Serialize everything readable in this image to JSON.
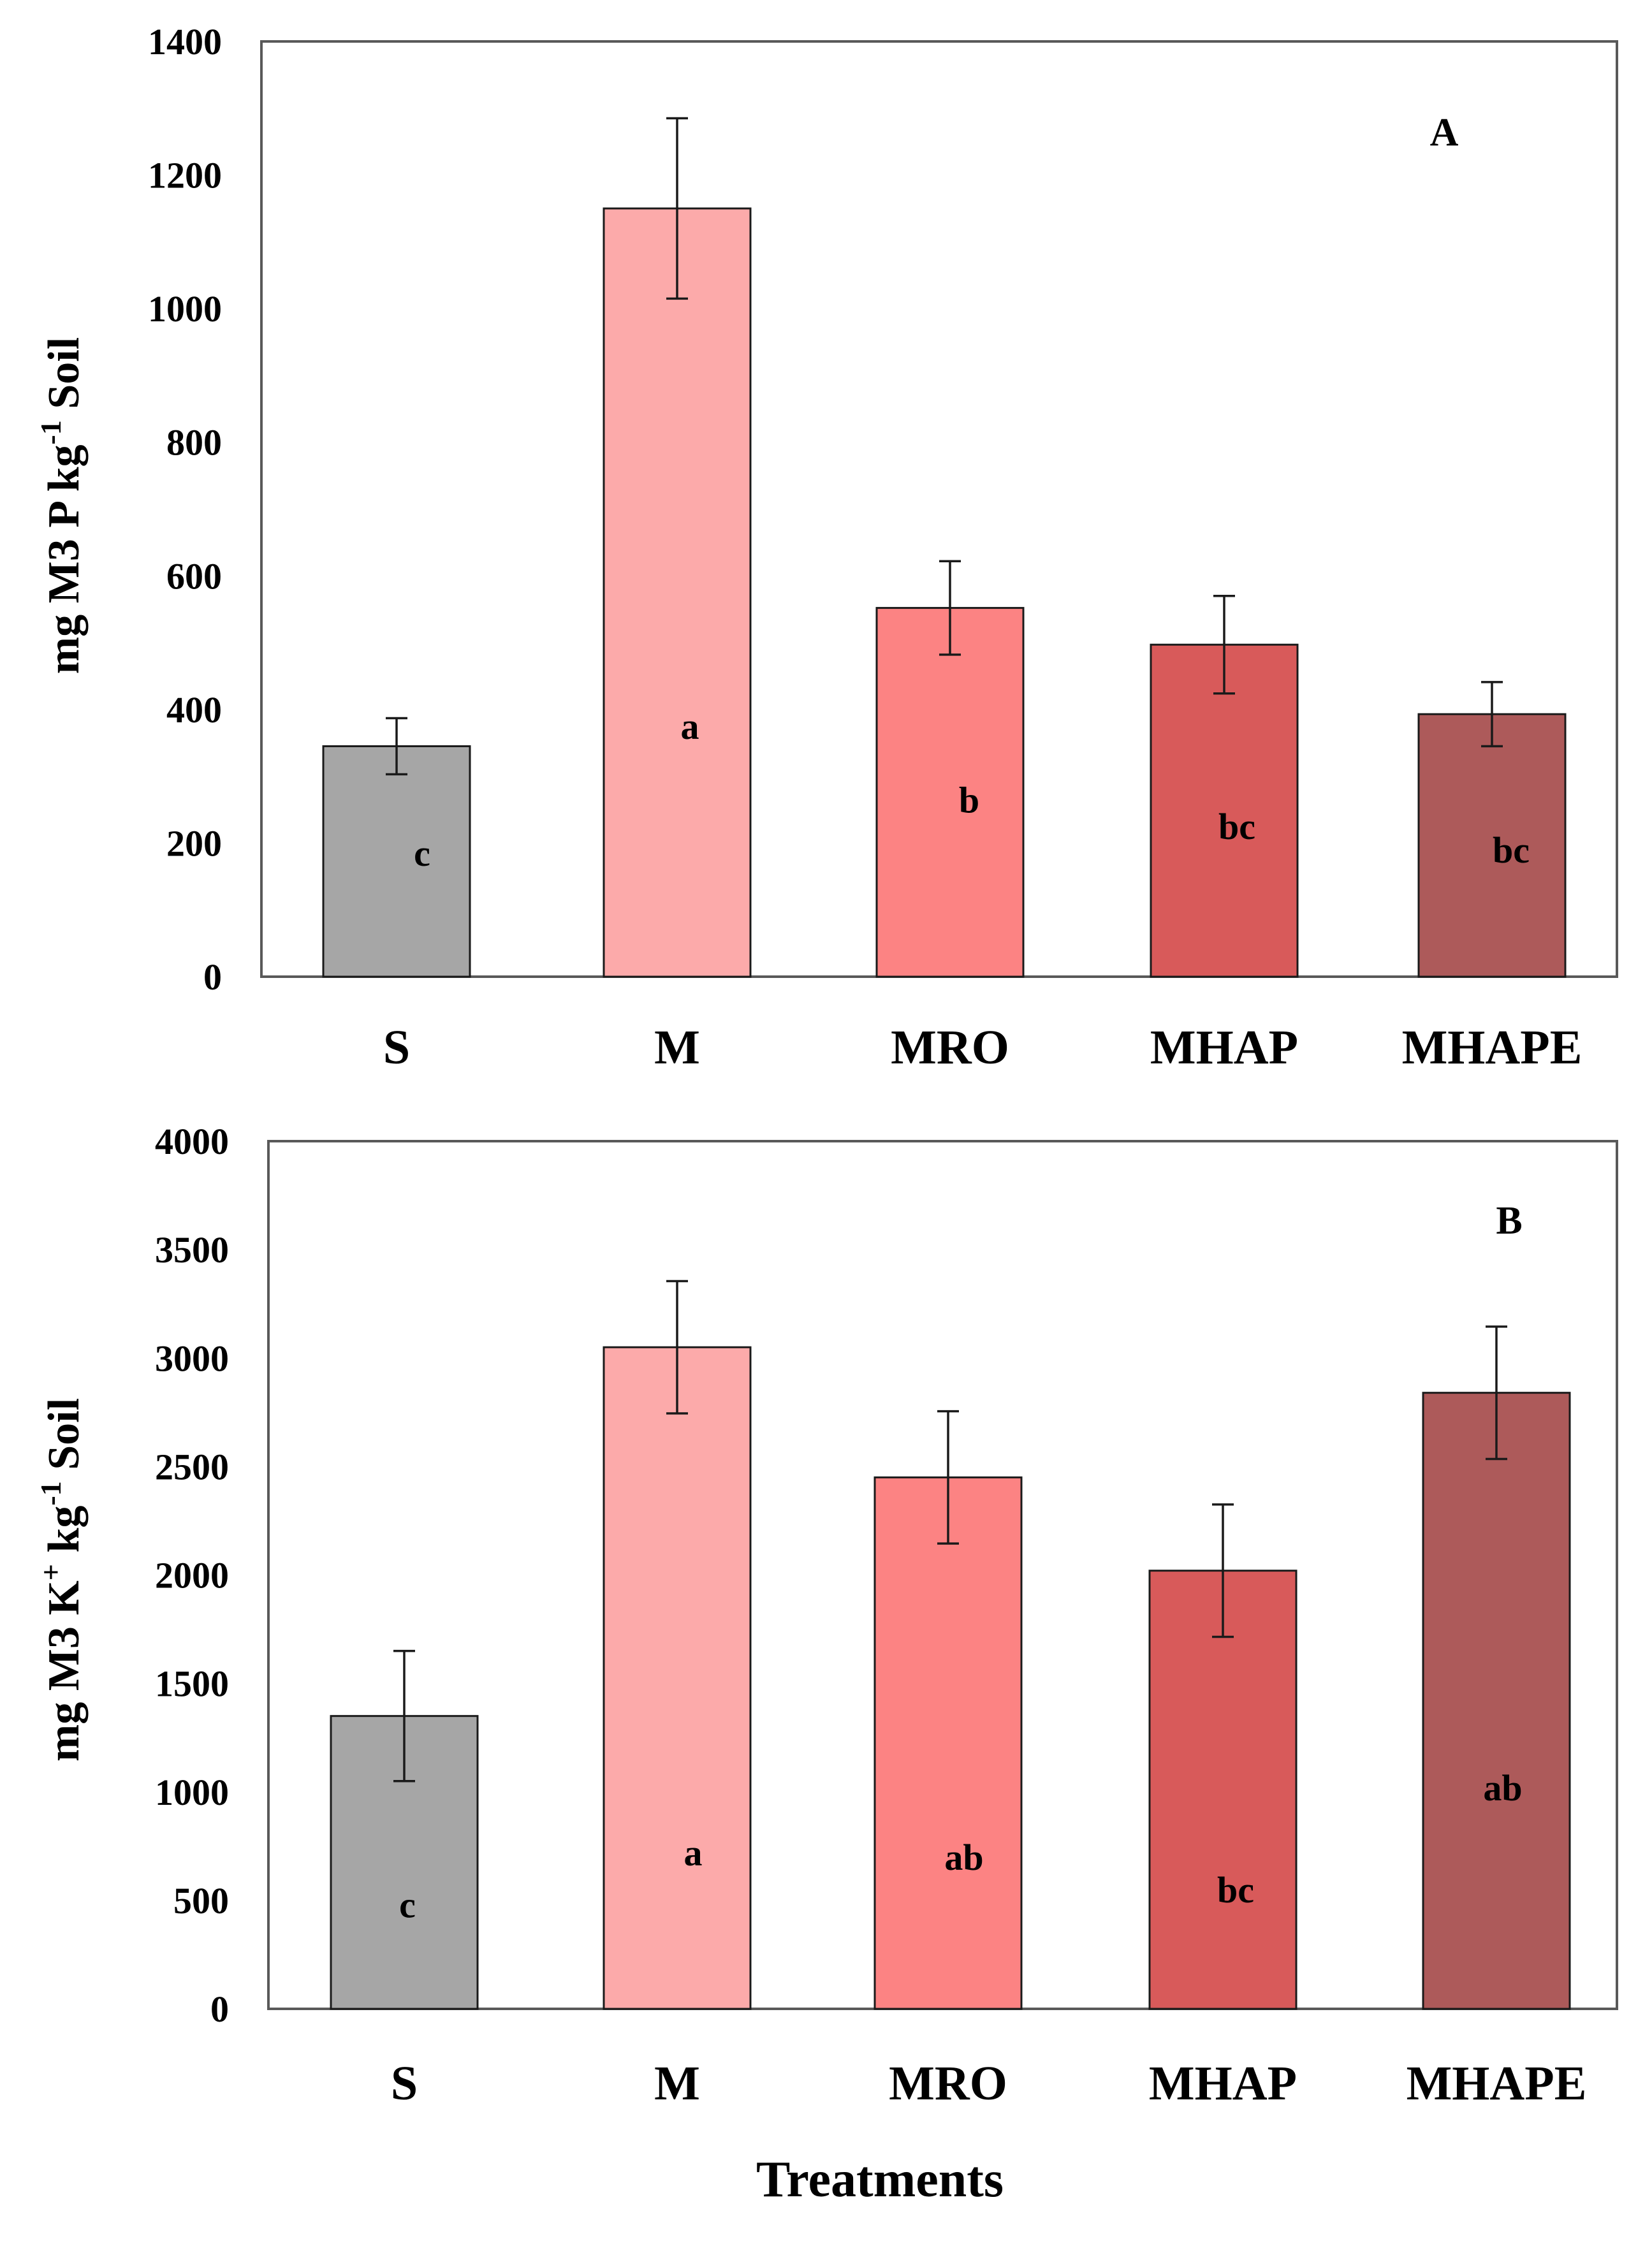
{
  "chart_data": [
    {
      "type": "bar",
      "panel_label": "A",
      "title": "",
      "xlabel": "",
      "ylabel": "mg M3 P kg",
      "ylabel_sup": "-1",
      "ylabel_tail": " Soil",
      "ylim": [
        0,
        1400
      ],
      "yticks": [
        0,
        200,
        400,
        600,
        800,
        1000,
        1200,
        1400
      ],
      "ytick_labels": [
        "0",
        "200",
        "400",
        "600",
        "800",
        "1000",
        "1200",
        "1400"
      ],
      "categories": [
        "S",
        "M",
        "MRO",
        "MHAP",
        "MHAPE"
      ],
      "values": [
        345,
        1150,
        552,
        497,
        393
      ],
      "errors": [
        42,
        135,
        70,
        73,
        48
      ],
      "significance": [
        "c",
        "a",
        "b",
        "bc",
        "bc"
      ],
      "significance_y": [
        185,
        375,
        265,
        225,
        190
      ],
      "colors": [
        "#a6a6a6",
        "#fcaaaa",
        "#fc8383",
        "#d85a5a",
        "#ad5a5a"
      ]
    },
    {
      "type": "bar",
      "panel_label": "B",
      "title": "",
      "xlabel": "Treatments",
      "ylabel": "mg M3 K",
      "ylabel_sup": "+",
      "ylabel_mid": " kg",
      "ylabel_sup2": "-1",
      "ylabel_tail": " Soil",
      "ylim": [
        0,
        4000
      ],
      "yticks": [
        0,
        500,
        1000,
        1500,
        2000,
        2500,
        3000,
        3500,
        4000
      ],
      "ytick_labels": [
        "0",
        "500",
        "1000",
        "1500",
        "2000",
        "2500",
        "3000",
        "3500",
        "4000"
      ],
      "categories": [
        "S",
        "M",
        "MRO",
        "MHAP",
        "MHAPE"
      ],
      "values": [
        1350,
        3050,
        2450,
        2020,
        2840
      ],
      "errors": [
        300,
        305,
        305,
        305,
        305
      ],
      "significance": [
        "c",
        "a",
        "ab",
        "bc",
        "ab"
      ],
      "significance_y": [
        480,
        720,
        700,
        550,
        1020
      ],
      "colors": [
        "#a6a6a6",
        "#fcaaaa",
        "#fc8383",
        "#d85a5a",
        "#ad5a5a"
      ]
    }
  ]
}
